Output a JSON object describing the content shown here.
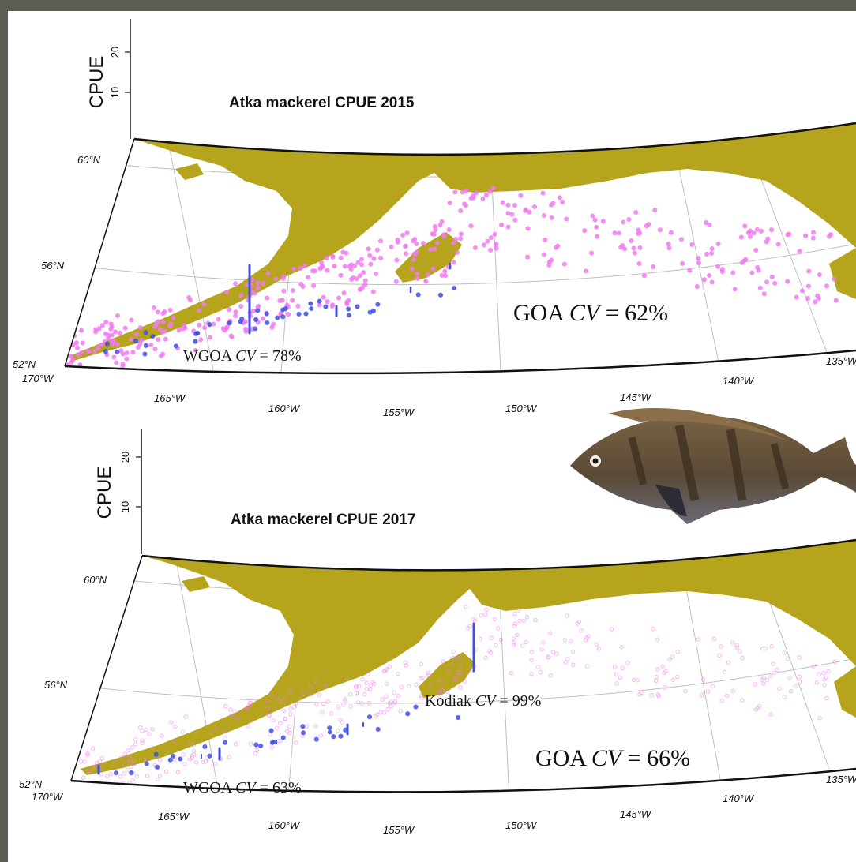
{
  "panels": [
    {
      "title": "Atka mackerel   CPUE 2015",
      "cpue_axis": {
        "label": "CPUE",
        "ticks": [
          "10",
          "20"
        ]
      },
      "lat_labels": [
        "60°N",
        "56°N",
        "52°N"
      ],
      "lon_labels": [
        "170°W",
        "165°W",
        "160°W",
        "155°W",
        "150°W",
        "145°W",
        "140°W",
        "135°W"
      ],
      "annotations": [
        {
          "region": "WGOA",
          "cv_label": "CV",
          "eq": " = ",
          "value": "78%"
        },
        {
          "region": "GOA",
          "cv_label": "CV",
          "eq": " = ",
          "value": "62%"
        }
      ]
    },
    {
      "title": "Atka mackerel   CPUE 2017",
      "cpue_axis": {
        "label": "CPUE",
        "ticks": [
          "10",
          "20"
        ]
      },
      "lat_labels": [
        "60°N",
        "56°N",
        "52°N"
      ],
      "lon_labels": [
        "170°W",
        "165°W",
        "160°W",
        "155°W",
        "150°W",
        "145°W",
        "140°W",
        "135°W"
      ],
      "annotations": [
        {
          "region": "Kodiak",
          "cv_label": "CV",
          "eq": " = ",
          "value": "99%"
        },
        {
          "region": "WGOA",
          "cv_label": "CV",
          "eq": " = ",
          "value": "63%"
        },
        {
          "region": "GOA",
          "cv_label": "CV",
          "eq": " = ",
          "value": "66%"
        }
      ]
    }
  ],
  "colors": {
    "background": "#5c5d52",
    "land": "#b5a41c",
    "survey_points": "#f07cf0",
    "cpue_bars": "#3f4fe6",
    "graticule": "#bfbfbf"
  },
  "icons": {
    "fish": "atka-mackerel-fish-photo"
  }
}
